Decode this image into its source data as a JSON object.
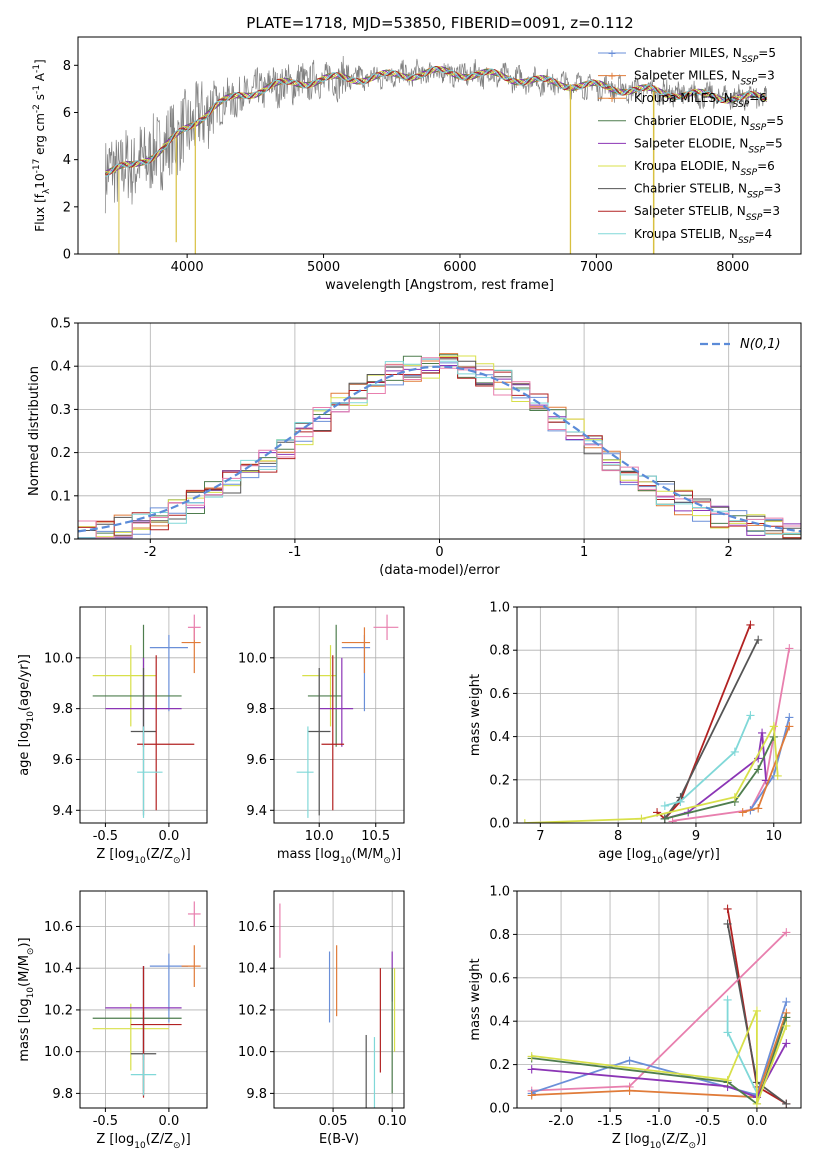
{
  "figure_title": "PLATE=1718, MJD=53850, FIBERID=0091, z=0.112",
  "series_styles": [
    {
      "name": "Chabrier MILES",
      "nssp": 5,
      "color": "#6a8fd8"
    },
    {
      "name": "Salpeter MILES",
      "nssp": 3,
      "color": "#e07b39"
    },
    {
      "name": "Kroupa MILES",
      "nssp": 6,
      "color": "#e8853a"
    },
    {
      "name": "Chabrier ELODIE",
      "nssp": 5,
      "color": "#4e7d4e"
    },
    {
      "name": "Salpeter ELODIE",
      "nssp": 5,
      "color": "#8b35b5"
    },
    {
      "name": "Kroupa ELODIE",
      "nssp": 6,
      "color": "#d8e04a"
    },
    {
      "name": "Chabrier STELIB",
      "nssp": 3,
      "color": "#555555"
    },
    {
      "name": "Salpeter STELIB",
      "nssp": 3,
      "color": "#b22222"
    },
    {
      "name": "Kroupa STELIB",
      "nssp": 4,
      "color": "#80d8d8"
    },
    {
      "name": "",
      "nssp": null,
      "color": "#e87fae"
    }
  ],
  "chart_data": [
    {
      "id": "spectrum",
      "type": "line",
      "title": "PLATE=1718, MJD=53850, FIBERID=0091, z=0.112",
      "xlabel": "wavelength [Angstrom, rest frame]",
      "ylabel": "Flux [f_λ10^-17 erg cm^-2 s^-1 A^-1]",
      "xlim": [
        3200,
        8500
      ],
      "ylim": [
        0,
        9.2
      ],
      "xticks": [
        4000,
        5000,
        6000,
        7000,
        8000
      ],
      "yticks": [
        0,
        2,
        4,
        6,
        8
      ],
      "legend_position": "right",
      "continuum": {
        "x": [
          3400,
          3600,
          3800,
          4000,
          4200,
          4600,
          5000,
          5400,
          5800,
          6200,
          6600,
          7000,
          7400,
          7800,
          8200
        ],
        "y": [
          3.5,
          3.7,
          4.4,
          5.3,
          6.3,
          7.1,
          7.4,
          7.5,
          7.7,
          7.6,
          7.3,
          7.1,
          6.9,
          6.7,
          6.6
        ]
      },
      "series": [
        {
          "name": "Chabrier MILES",
          "nssp": "5"
        },
        {
          "name": "Salpeter MILES",
          "nssp": "3"
        },
        {
          "name": "Kroupa MILES",
          "nssp": "6"
        },
        {
          "name": "Chabrier ELODIE",
          "nssp": "5"
        },
        {
          "name": "Salpeter ELODIE",
          "nssp": "5"
        },
        {
          "name": "Kroupa ELODIE",
          "nssp": "6"
        },
        {
          "name": "Chabrier STELIB",
          "nssp": "3"
        },
        {
          "name": "Salpeter STELIB",
          "nssp": "3"
        },
        {
          "name": "Kroupa STELIB",
          "nssp": "4"
        }
      ]
    },
    {
      "id": "residuals",
      "type": "line",
      "xlabel": "(data-model)/error",
      "ylabel": "Normed distribution",
      "xlim": [
        -2.5,
        2.5
      ],
      "ylim": [
        0,
        0.5
      ],
      "xticks": [
        -2,
        -1,
        0,
        1,
        2
      ],
      "yticks": [
        0.0,
        0.1,
        0.2,
        0.3,
        0.4,
        0.5
      ],
      "grid": true,
      "gaussian_label": "N(0,1)",
      "hist_bins": [
        -2.5,
        2.5,
        40
      ]
    },
    {
      "id": "age_vs_Z",
      "type": "scatter",
      "xlabel": "Z [log10(Z/Z⊙)]",
      "ylabel": "age  [log10(age/yr)]",
      "xlim": [
        -0.7,
        0.3
      ],
      "ylim": [
        9.35,
        10.2
      ],
      "xticks": [
        -0.5,
        0.0
      ],
      "yticks": [
        9.4,
        9.6,
        9.8,
        10.0
      ],
      "grid": true,
      "points": [
        {
          "series": 0,
          "x": 0.0,
          "y": 10.04,
          "xerr": [
            0.15,
            0.15
          ],
          "yerr": [
            0.25,
            0.05
          ]
        },
        {
          "series": 1,
          "x": 0.2,
          "y": 10.06,
          "xerr": [
            0.1,
            0.05
          ],
          "yerr": [
            0.12,
            0.06
          ]
        },
        {
          "series": 9,
          "x": 0.2,
          "y": 10.12,
          "xerr": [
            0.05,
            0.05
          ],
          "yerr": [
            0.05,
            0.05
          ]
        },
        {
          "series": 5,
          "x": -0.3,
          "y": 9.93,
          "xerr": [
            0.3,
            0.2
          ],
          "yerr": [
            0.2,
            0.12
          ]
        },
        {
          "series": 3,
          "x": -0.2,
          "y": 9.85,
          "xerr": [
            0.4,
            0.3
          ],
          "yerr": [
            0.2,
            0.28
          ]
        },
        {
          "series": 4,
          "x": -0.2,
          "y": 9.8,
          "xerr": [
            0.3,
            0.3
          ],
          "yerr": [
            0.15,
            0.2
          ]
        },
        {
          "series": 6,
          "x": -0.2,
          "y": 9.71,
          "xerr": [
            0.1,
            0.1
          ],
          "yerr": [
            0.33,
            0.25
          ]
        },
        {
          "series": 7,
          "x": -0.1,
          "y": 9.66,
          "xerr": [
            0.15,
            0.3
          ],
          "yerr": [
            0.26,
            0.35
          ]
        },
        {
          "series": 8,
          "x": -0.2,
          "y": 9.55,
          "xerr": [
            0.05,
            0.15
          ],
          "yerr": [
            0.18,
            0.18
          ]
        }
      ]
    },
    {
      "id": "age_vs_mass",
      "type": "scatter",
      "xlabel": "mass [log10(M/M⊙)]",
      "xlim": [
        9.6,
        10.75
      ],
      "ylim": [
        9.35,
        10.2
      ],
      "xticks": [
        10.0,
        10.5
      ],
      "yticks": [
        9.4,
        9.6,
        9.8,
        10.0
      ],
      "grid": true,
      "points": [
        {
          "series": 0,
          "x": 10.4,
          "y": 10.04,
          "xerr": [
            0.2,
            0.05
          ],
          "yerr": [
            0.25,
            0.05
          ]
        },
        {
          "series": 1,
          "x": 10.4,
          "y": 10.06,
          "xerr": [
            0.2,
            0.05
          ],
          "yerr": [
            0.12,
            0.06
          ]
        },
        {
          "series": 9,
          "x": 10.6,
          "y": 10.12,
          "xerr": [
            0.12,
            0.1
          ],
          "yerr": [
            0.05,
            0.05
          ]
        },
        {
          "series": 5,
          "x": 10.1,
          "y": 9.93,
          "xerr": [
            0.25,
            0.05
          ],
          "yerr": [
            0.2,
            0.12
          ]
        },
        {
          "series": 3,
          "x": 10.15,
          "y": 9.85,
          "xerr": [
            0.25,
            0.05
          ],
          "yerr": [
            0.2,
            0.28
          ]
        },
        {
          "series": 4,
          "x": 10.2,
          "y": 9.8,
          "xerr": [
            0.2,
            0.1
          ],
          "yerr": [
            0.15,
            0.2
          ]
        },
        {
          "series": 6,
          "x": 10.0,
          "y": 9.71,
          "xerr": [
            0.1,
            0.1
          ],
          "yerr": [
            0.33,
            0.25
          ]
        },
        {
          "series": 7,
          "x": 10.12,
          "y": 9.66,
          "xerr": [
            0.1,
            0.1
          ],
          "yerr": [
            0.26,
            0.35
          ]
        },
        {
          "series": 8,
          "x": 9.9,
          "y": 9.55,
          "xerr": [
            0.1,
            0.05
          ],
          "yerr": [
            0.18,
            0.18
          ]
        }
      ]
    },
    {
      "id": "mass_weight_vs_age",
      "type": "line",
      "xlabel": "age  [log10(age/yr)]",
      "ylabel": "mass weight",
      "xlim": [
        6.7,
        10.35
      ],
      "ylim": [
        0,
        1.0
      ],
      "xticks": [
        7,
        8,
        9,
        10
      ],
      "yticks": [
        0.0,
        0.2,
        0.4,
        0.6,
        0.8,
        1.0
      ],
      "grid": true,
      "series": [
        {
          "series": 7,
          "x": [
            8.5,
            8.6,
            8.8,
            9.7
          ],
          "y": [
            0.05,
            0.02,
            0.1,
            0.92
          ]
        },
        {
          "series": 6,
          "x": [
            8.6,
            8.8,
            9.8
          ],
          "y": [
            0.02,
            0.12,
            0.85
          ]
        },
        {
          "series": 8,
          "x": [
            8.6,
            8.8,
            9.5,
            9.7
          ],
          "y": [
            0.08,
            0.1,
            0.33,
            0.5
          ]
        },
        {
          "series": 9,
          "x": [
            8.7,
            9.7,
            9.9,
            10.2
          ],
          "y": [
            0.01,
            0.06,
            0.2,
            0.81
          ]
        },
        {
          "series": 4,
          "x": [
            8.6,
            8.9,
            9.8,
            9.85,
            9.9
          ],
          "y": [
            0.02,
            0.05,
            0.3,
            0.42,
            0.2
          ]
        },
        {
          "series": 3,
          "x": [
            8.6,
            9.5,
            9.8,
            10.0
          ],
          "y": [
            0.02,
            0.1,
            0.25,
            0.4
          ]
        },
        {
          "series": 0,
          "x": [
            9.7,
            10.0,
            10.2
          ],
          "y": [
            0.06,
            0.22,
            0.49
          ]
        },
        {
          "series": 1,
          "x": [
            9.6,
            9.8,
            10.2
          ],
          "y": [
            0.05,
            0.07,
            0.45
          ]
        },
        {
          "series": 5,
          "x": [
            6.8,
            8.3,
            9.5,
            10.0,
            10.05
          ],
          "y": [
            0.0,
            0.02,
            0.12,
            0.45,
            0.22
          ]
        }
      ]
    },
    {
      "id": "mass_vs_Z",
      "type": "scatter",
      "xlabel": "Z [log10(Z/Z⊙)]",
      "ylabel": "mass [log10(M/M⊙)]",
      "xlim": [
        -0.7,
        0.3
      ],
      "ylim": [
        9.73,
        10.77
      ],
      "xticks": [
        -0.5,
        0.0
      ],
      "yticks": [
        9.8,
        10.0,
        10.2,
        10.4,
        10.6
      ],
      "grid": true,
      "points": [
        {
          "series": 0,
          "x": 0.0,
          "y": 10.41,
          "xerr": [
            0.15,
            0.15
          ],
          "yerr": [
            0.27,
            0.06
          ]
        },
        {
          "series": 1,
          "x": 0.2,
          "y": 10.41,
          "xerr": [
            0.1,
            0.05
          ],
          "yerr": [
            0.1,
            0.1
          ]
        },
        {
          "series": 9,
          "x": 0.2,
          "y": 10.66,
          "xerr": [
            0.05,
            0.05
          ],
          "yerr": [
            0.06,
            0.06
          ]
        },
        {
          "series": 5,
          "x": -0.3,
          "y": 10.11,
          "xerr": [
            0.3,
            0.3
          ],
          "yerr": [
            0.2,
            0.12
          ]
        },
        {
          "series": 3,
          "x": -0.2,
          "y": 10.16,
          "xerr": [
            0.4,
            0.3
          ],
          "yerr": [
            0.35,
            0.25
          ]
        },
        {
          "series": 4,
          "x": -0.2,
          "y": 10.21,
          "xerr": [
            0.3,
            0.3
          ],
          "yerr": [
            0.25,
            0.2
          ]
        },
        {
          "series": 6,
          "x": -0.2,
          "y": 9.99,
          "xerr": [
            0.1,
            0.1
          ],
          "yerr": [
            0.2,
            0.2
          ]
        },
        {
          "series": 7,
          "x": -0.2,
          "y": 10.13,
          "xerr": [
            0.1,
            0.3
          ],
          "yerr": [
            0.35,
            0.28
          ]
        },
        {
          "series": 8,
          "x": -0.2,
          "y": 9.89,
          "xerr": [
            0.1,
            0.1
          ],
          "yerr": [
            0.1,
            0.1
          ]
        }
      ]
    },
    {
      "id": "mass_vs_ebv",
      "type": "scatter",
      "xlabel": "E(B-V)",
      "xlim": [
        0.0,
        0.11
      ],
      "ylim": [
        9.73,
        10.77
      ],
      "xticks": [
        0.05,
        0.1
      ],
      "yticks": [
        9.8,
        10.0,
        10.2,
        10.4,
        10.6
      ],
      "grid": true,
      "points": [
        {
          "series": 9,
          "x": 0.005,
          "y": 10.58,
          "xerr": [
            0,
            0
          ],
          "yerr": [
            0.13,
            0.13
          ]
        },
        {
          "series": 0,
          "x": 0.047,
          "y": 10.31,
          "xerr": [
            0,
            0
          ],
          "yerr": [
            0.17,
            0.17
          ]
        },
        {
          "series": 1,
          "x": 0.053,
          "y": 10.34,
          "xerr": [
            0,
            0
          ],
          "yerr": [
            0.17,
            0.17
          ]
        },
        {
          "series": 6,
          "x": 0.078,
          "y": 9.86,
          "xerr": [
            0,
            0
          ],
          "yerr": [
            0.22,
            0.22
          ]
        },
        {
          "series": 8,
          "x": 0.085,
          "y": 9.86,
          "xerr": [
            0,
            0
          ],
          "yerr": [
            0.21,
            0.21
          ]
        },
        {
          "series": 7,
          "x": 0.09,
          "y": 10.15,
          "xerr": [
            0,
            0
          ],
          "yerr": [
            0.25,
            0.25
          ]
        },
        {
          "series": 4,
          "x": 0.1,
          "y": 10.36,
          "xerr": [
            0,
            0
          ],
          "yerr": [
            0.12,
            0.12
          ]
        },
        {
          "series": 3,
          "x": 0.1,
          "y": 10.1,
          "xerr": [
            0,
            0
          ],
          "yerr": [
            0.3,
            0.3
          ]
        },
        {
          "series": 5,
          "x": 0.102,
          "y": 10.2,
          "xerr": [
            0,
            0
          ],
          "yerr": [
            0.2,
            0.2
          ]
        }
      ]
    },
    {
      "id": "mass_weight_vs_Z",
      "type": "line",
      "xlabel": "Z [log10(Z/Z⊙)]",
      "ylabel": "mass weight",
      "xlim": [
        -2.45,
        0.45
      ],
      "ylim": [
        0,
        1.0
      ],
      "xticks": [
        -2.0,
        -1.5,
        -1.0,
        -0.5,
        0.0
      ],
      "yticks": [
        0.0,
        0.2,
        0.4,
        0.6,
        0.8,
        1.0
      ],
      "grid": true,
      "series": [
        {
          "series": 7,
          "x": [
            -0.3,
            0.0,
            0.3
          ],
          "y": [
            0.92,
            0.1,
            0.02
          ]
        },
        {
          "series": 6,
          "x": [
            -0.3,
            0.0,
            0.3
          ],
          "y": [
            0.85,
            0.12,
            0.02
          ]
        },
        {
          "series": 8,
          "x": [
            -0.3,
            -0.3,
            0.0
          ],
          "y": [
            0.5,
            0.35,
            0.07
          ]
        },
        {
          "series": 9,
          "x": [
            -2.3,
            -1.3,
            0.3
          ],
          "y": [
            0.08,
            0.1,
            0.81
          ]
        },
        {
          "series": 0,
          "x": [
            -2.3,
            -1.3,
            0.0,
            0.3
          ],
          "y": [
            0.07,
            0.22,
            0.06,
            0.49
          ]
        },
        {
          "series": 1,
          "x": [
            -2.3,
            -1.3,
            0.0,
            0.3
          ],
          "y": [
            0.06,
            0.08,
            0.05,
            0.44
          ]
        },
        {
          "series": 4,
          "x": [
            -2.3,
            -0.3,
            0.0,
            0.3
          ],
          "y": [
            0.18,
            0.1,
            0.05,
            0.3
          ]
        },
        {
          "series": 3,
          "x": [
            -2.3,
            -0.3,
            0.0,
            0.3
          ],
          "y": [
            0.23,
            0.12,
            0.02,
            0.42
          ]
        },
        {
          "series": 5,
          "x": [
            -2.3,
            -0.3,
            0.0,
            0.0,
            0.3
          ],
          "y": [
            0.24,
            0.13,
            0.45,
            0.02,
            0.38
          ]
        }
      ]
    }
  ]
}
